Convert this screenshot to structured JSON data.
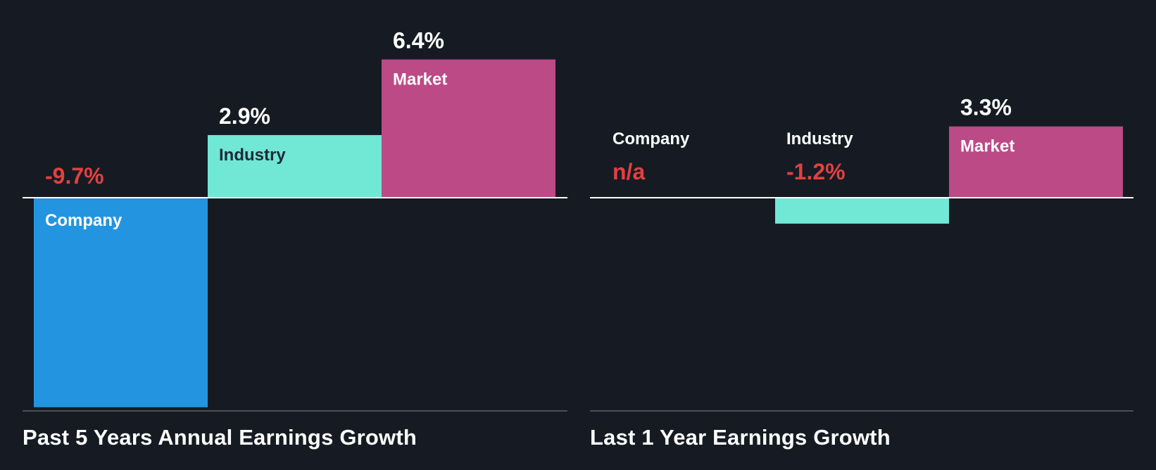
{
  "colors": {
    "background": "#161b23",
    "company": "#2394e0",
    "industry": "#71e7d6",
    "market": "#bb4a86",
    "negative_value": "#e24040",
    "positive_value": "#ffffff",
    "zero_line": "#ffffff",
    "baseline": "#4a5058"
  },
  "chart_data": [
    {
      "type": "bar",
      "title": "Past 5 Years Annual Earnings Growth",
      "categories": [
        "Company",
        "Industry",
        "Market"
      ],
      "values": [
        -9.7,
        2.9,
        6.4
      ],
      "value_labels": [
        "-9.7%",
        "2.9%",
        "6.4%"
      ],
      "unit": "%",
      "ylim": [
        -9.7,
        6.4
      ],
      "grid": false,
      "legend": "none"
    },
    {
      "type": "bar",
      "title": "Last 1 Year Earnings Growth",
      "categories": [
        "Company",
        "Industry",
        "Market"
      ],
      "values": [
        null,
        -1.2,
        3.3
      ],
      "value_labels": [
        "n/a",
        "-1.2%",
        "3.3%"
      ],
      "unit": "%",
      "ylim": [
        -9.7,
        6.4
      ],
      "grid": false,
      "legend": "none"
    }
  ]
}
